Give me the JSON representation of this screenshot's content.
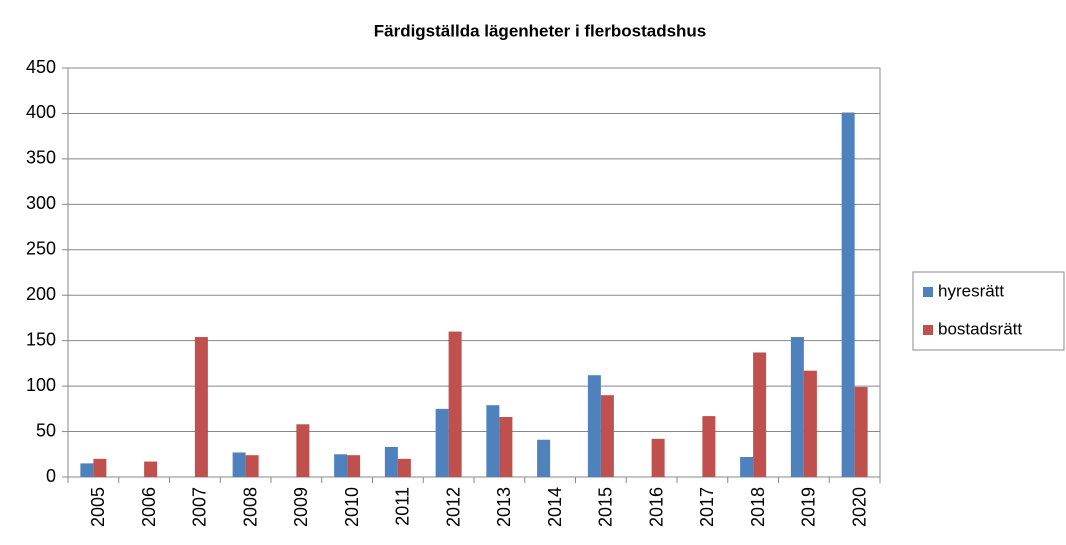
{
  "chart_data": {
    "type": "bar",
    "title": "Färdigställda lägenheter i flerbostadshus",
    "categories": [
      "2005",
      "2006",
      "2007",
      "2008",
      "2009",
      "2010",
      "2011",
      "2012",
      "2013",
      "2014",
      "2015",
      "2016",
      "2017",
      "2018",
      "2019",
      "2020"
    ],
    "series": [
      {
        "name": "hyresrätt",
        "color": "#4f81bd",
        "values": [
          15,
          0,
          0,
          27,
          0,
          25,
          33,
          75,
          79,
          41,
          112,
          0,
          0,
          22,
          154,
          401
        ]
      },
      {
        "name": "bostadsrätt",
        "color": "#c0504d",
        "values": [
          20,
          17,
          154,
          24,
          58,
          24,
          20,
          160,
          66,
          0,
          90,
          42,
          67,
          137,
          117,
          99
        ]
      }
    ],
    "ylim": [
      0,
      450
    ],
    "yticks": [
      0,
      50,
      100,
      150,
      200,
      250,
      300,
      350,
      400,
      450
    ],
    "grid": true,
    "legend": "right"
  }
}
